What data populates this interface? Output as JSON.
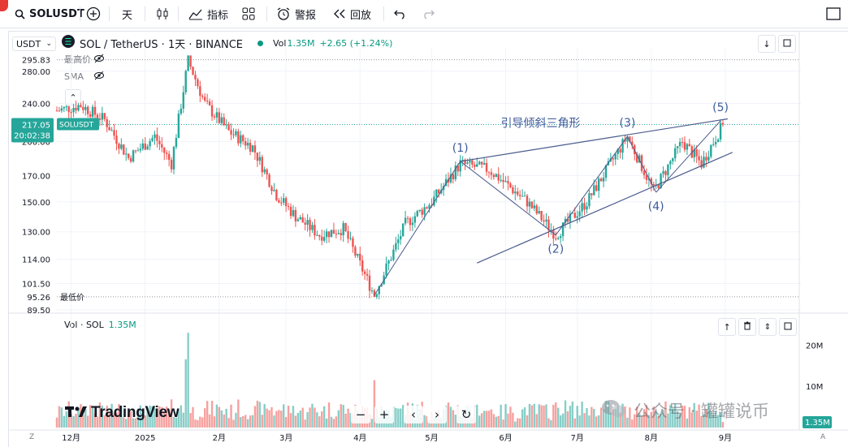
{
  "toolbar": {
    "symbol": "SOLUSDT",
    "interval": "天",
    "indicators_label": "指标",
    "alert_label": "警报",
    "replay_label": "回放"
  },
  "legend": {
    "symbol_box": "USDT",
    "title": "SOL / TetherUS · 1天 · BINANCE",
    "vol_label": "Vol",
    "vol_value": "1.35M",
    "change": "+2.65 (+1.24%)"
  },
  "indicators": {
    "high_label": "最高价",
    "sma_label": "SMA",
    "low_label": "最低价"
  },
  "price_axis": {
    "ticks": [
      "280.00",
      "240.00",
      "200.00",
      "170.00",
      "150.00",
      "130.00",
      "114.00",
      "101.50",
      "89.50"
    ],
    "high_value": "295.83",
    "low_value": "95.26",
    "current_price": "217.05",
    "countdown": "20:02:38",
    "symbol_tag": "SOLUSDT"
  },
  "volume_panel": {
    "label": "Vol · SOL",
    "value": "1.35M",
    "ticks": [
      "20M",
      "10M"
    ],
    "current_tag": "1.35M"
  },
  "time_axis": {
    "labels": [
      "12月",
      "2025",
      "2月",
      "3月",
      "4月",
      "5月",
      "6月",
      "7月",
      "8月",
      "9月"
    ]
  },
  "annotations": {
    "pattern_label": "引导倾斜三角形",
    "waves": [
      "(1)",
      "(2)",
      "(3)",
      "(4)",
      "(5)"
    ]
  },
  "watermark": {
    "brand": "TradingView",
    "public_account": "公众号 · 罐罐说币"
  },
  "footer": {
    "left_letter": "Z",
    "right_letter": "A"
  },
  "colors": {
    "up": "#26a69a",
    "down": "#ef5350",
    "line": "#4a5a8c",
    "label": "#3d5a9a"
  },
  "chart_data": {
    "type": "candlestick",
    "title": "SOL / TetherUS · 1天 · BINANCE",
    "y_scale": "log",
    "ylim": [
      89.5,
      300
    ],
    "x_range": [
      "2024-11-25",
      "2025-08-31"
    ],
    "key_prices": {
      "high": 295.83,
      "low": 95.26,
      "last": 217.05
    },
    "price_path": [
      [
        "2024-11-25",
        232
      ],
      [
        "2024-12-05",
        238
      ],
      [
        "2024-12-15",
        222
      ],
      [
        "2024-12-25",
        185
      ],
      [
        "2025-01-05",
        205
      ],
      [
        "2025-01-12",
        180
      ],
      [
        "2025-01-19",
        295
      ],
      [
        "2025-01-26",
        240
      ],
      [
        "2025-02-05",
        210
      ],
      [
        "2025-02-15",
        195
      ],
      [
        "2025-02-25",
        155
      ],
      [
        "2025-03-05",
        140
      ],
      [
        "2025-03-15",
        128
      ],
      [
        "2025-03-25",
        132
      ],
      [
        "2025-04-07",
        96
      ],
      [
        "2025-04-20",
        135
      ],
      [
        "2025-05-01",
        150
      ],
      [
        "2025-05-13",
        180
      ],
      [
        "2025-05-25",
        175
      ],
      [
        "2025-06-10",
        150
      ],
      [
        "2025-06-22",
        128
      ],
      [
        "2025-07-05",
        150
      ],
      [
        "2025-07-22",
        205
      ],
      [
        "2025-08-02",
        158
      ],
      [
        "2025-08-14",
        200
      ],
      [
        "2025-08-22",
        180
      ],
      [
        "2025-08-31",
        217
      ]
    ],
    "volume_ylim": [
      0,
      25000000
    ],
    "volume_last": 1350000,
    "volume_peak": 23000000
  }
}
